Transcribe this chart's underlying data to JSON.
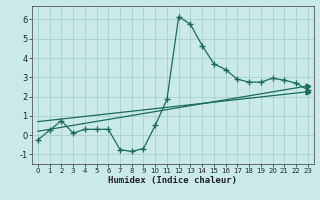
{
  "xlabel": "Humidex (Indice chaleur)",
  "background_color": "#caeaea",
  "grid_color": "#aacece",
  "line_color": "#1a6b5a",
  "xlim": [
    -0.5,
    23.5
  ],
  "ylim": [
    -1.5,
    6.7
  ],
  "xticks": [
    0,
    1,
    2,
    3,
    4,
    5,
    6,
    7,
    8,
    9,
    10,
    11,
    12,
    13,
    14,
    15,
    16,
    17,
    18,
    19,
    20,
    21,
    22,
    23
  ],
  "yticks": [
    -1,
    0,
    1,
    2,
    3,
    4,
    5,
    6
  ],
  "line1_x": [
    0,
    1,
    2,
    3,
    4,
    5,
    6,
    7,
    8,
    9,
    10,
    11,
    12,
    13,
    14,
    15,
    16,
    17,
    18,
    19,
    20,
    21,
    22,
    23
  ],
  "line1_y": [
    -0.25,
    0.25,
    0.75,
    0.1,
    0.3,
    0.3,
    0.3,
    -0.75,
    -0.85,
    -0.7,
    0.5,
    1.85,
    6.15,
    5.75,
    4.65,
    3.7,
    3.4,
    2.9,
    2.75,
    2.75,
    2.95,
    2.85,
    2.7,
    2.35
  ],
  "line2_x": [
    0,
    23
  ],
  "line2_y": [
    0.2,
    2.55
  ],
  "line3_x": [
    0,
    23
  ],
  "line3_y": [
    0.7,
    2.25
  ]
}
